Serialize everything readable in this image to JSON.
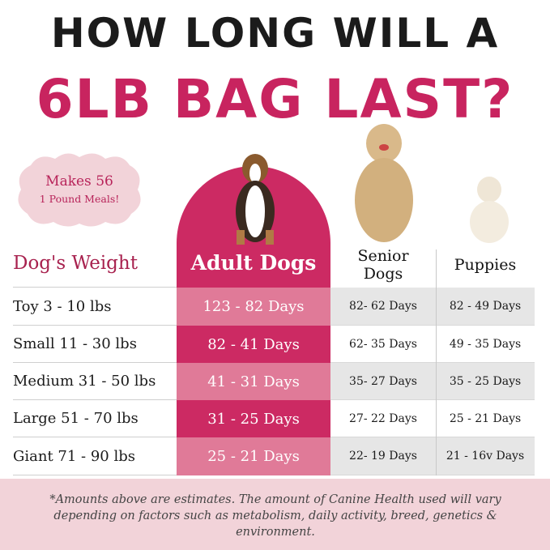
{
  "title": {
    "line1": "HOW LONG WILL A",
    "line2": "6LB BAG LAST?"
  },
  "badge": {
    "line1": "Makes 56",
    "line2": "1 Pound Meals!"
  },
  "colors": {
    "title_pink": "#c8245f",
    "adult_dark": "#cc2a63",
    "adult_light": "#e07a98",
    "gray_row": "#e6e6e6",
    "footer_bg": "#f2d3d9"
  },
  "table": {
    "headers": [
      "Dog's Weight",
      "Adult Dogs",
      "Senior Dogs",
      "Puppies"
    ],
    "rows": [
      [
        "Toy 3 - 10 lbs",
        "123 - 82 Days",
        "82- 62 Days",
        "82 - 49 Days"
      ],
      [
        "Small 11 - 30 lbs",
        "82 - 41 Days",
        "62- 35 Days",
        "49 - 35 Days"
      ],
      [
        "Medium 31 - 50 lbs",
        "41 - 31 Days",
        "35- 27 Days",
        "35 - 25 Days"
      ],
      [
        "Large 51 - 70 lbs",
        "31 - 25 Days",
        "27- 22 Days",
        "25 - 21 Days"
      ],
      [
        "Giant 71 - 90 lbs",
        "25 - 21 Days",
        "22- 19 Days",
        "21 - 16v Days"
      ]
    ]
  },
  "images": {
    "adult": "beagle-photo",
    "senior": "golden-retriever-photo",
    "puppy": "puppy-photo"
  },
  "footer": "*Amounts above are estimates. The amount of Canine Health used will vary depending on factors such as metabolism, daily activity, breed, genetics & environment."
}
